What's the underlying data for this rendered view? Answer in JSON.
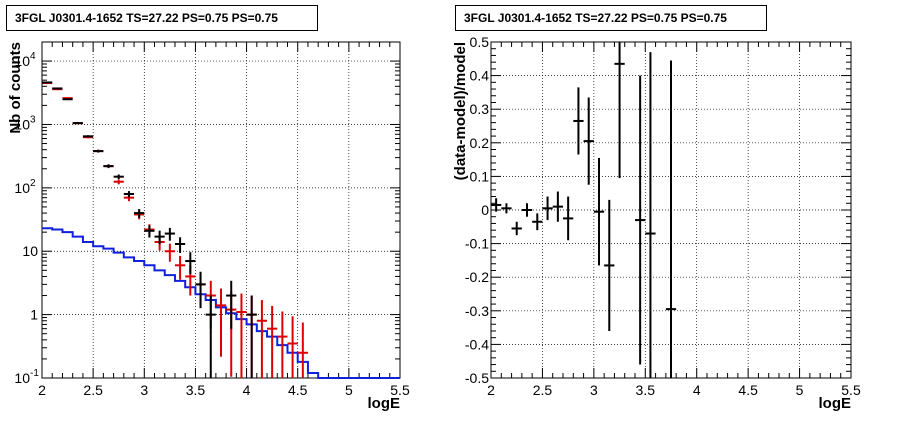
{
  "panels": {
    "left": {
      "title": "3FGL J0301.4-1652 TS=27.22 PS=0.75 PS=0.75"
    },
    "right": {
      "title": "3FGL J0301.4-1652 TS=27.22 PS=0.75 PS=0.75"
    }
  },
  "colors": {
    "data": "#000000",
    "model": "#dd0000",
    "background": "#1020dd",
    "grid": "#000000"
  },
  "chart_data": [
    {
      "type": "line",
      "xlabel": "logE",
      "ylabel": "Nb of counts",
      "xlim": [
        2,
        5.5
      ],
      "ylim": [
        0.1,
        20000
      ],
      "yscale": "log",
      "grid": true,
      "x_ticks": [
        "2",
        "2.5",
        "3",
        "3.5",
        "4",
        "4.5",
        "5",
        "5.5"
      ],
      "y_ticks": [
        {
          "v": 0.1,
          "label": "10",
          "exp": "-1"
        },
        {
          "v": 1,
          "label": "1",
          "exp": ""
        },
        {
          "v": 10,
          "label": "10",
          "exp": ""
        },
        {
          "v": 100,
          "label": "10",
          "exp": "2"
        },
        {
          "v": 1000,
          "label": "10",
          "exp": "3"
        },
        {
          "v": 10000,
          "label": "10",
          "exp": "4"
        }
      ],
      "series": [
        {
          "role": "data",
          "x": [
            2.05,
            2.15,
            2.25,
            2.35,
            2.45,
            2.55,
            2.65,
            2.75,
            2.85,
            2.95,
            3.05,
            3.15,
            3.25,
            3.35,
            3.45,
            3.55,
            3.65,
            3.75,
            3.85,
            3.95,
            4.05,
            4.15,
            4.25,
            4.35,
            4.45,
            4.55
          ],
          "y": [
            4600,
            3700,
            2500,
            1050,
            650,
            380,
            220,
            150,
            80,
            40,
            21,
            17,
            19,
            13,
            7,
            3,
            1,
            0,
            2,
            0,
            1,
            0,
            0,
            0,
            0,
            0
          ]
        },
        {
          "role": "model",
          "x": [
            2.05,
            2.15,
            2.25,
            2.35,
            2.45,
            2.55,
            2.65,
            2.75,
            2.85,
            2.95,
            3.05,
            3.15,
            3.25,
            3.35,
            3.45,
            3.55,
            3.65,
            3.75,
            3.85,
            3.95,
            4.05,
            4.15,
            4.25,
            4.35,
            4.45,
            4.55
          ],
          "y": [
            4500,
            3600,
            2600,
            1050,
            630,
            380,
            220,
            125,
            70,
            38,
            22,
            14,
            10,
            6,
            4,
            3,
            2,
            1.4,
            1.2,
            1.1,
            1,
            0.8,
            0.6,
            0.45,
            0.35,
            0.25
          ]
        },
        {
          "role": "background",
          "x": [
            2.05,
            2.15,
            2.25,
            2.35,
            2.45,
            2.55,
            2.65,
            2.75,
            2.85,
            2.95,
            3.05,
            3.15,
            3.25,
            3.35,
            3.45,
            3.55,
            3.65,
            3.75,
            3.85,
            3.95,
            4.05,
            4.15,
            4.25,
            4.35,
            4.45,
            4.55,
            4.65,
            4.75,
            4.85,
            4.95,
            5.05,
            5.15,
            5.25,
            5.35,
            5.45
          ],
          "y": [
            23,
            22,
            20,
            17,
            14,
            12,
            11,
            9.5,
            8,
            7,
            6,
            5,
            4.2,
            3.4,
            2.7,
            2.1,
            1.7,
            1.3,
            1.05,
            0.85,
            0.7,
            0.55,
            0.45,
            0.33,
            0.25,
            0.18,
            0.12,
            0.1,
            0.1,
            0.1,
            0.1,
            0.1,
            0.1,
            0.1,
            0.1
          ]
        }
      ]
    },
    {
      "type": "scatter",
      "xlabel": "logE",
      "ylabel": "(data-model)/model",
      "xlim": [
        2,
        5.5
      ],
      "ylim": [
        -0.5,
        0.5
      ],
      "grid": true,
      "x_ticks": [
        "2",
        "2.5",
        "3",
        "3.5",
        "4",
        "4.5",
        "5",
        "5.5"
      ],
      "y_ticks": [
        "-0.5",
        "-0.4",
        "-0.3",
        "-0.2",
        "-0.1",
        "0",
        "0.1",
        "0.2",
        "0.3",
        "0.4",
        "0.5"
      ],
      "series": [
        {
          "role": "residuals",
          "x": [
            2.05,
            2.15,
            2.25,
            2.35,
            2.45,
            2.55,
            2.65,
            2.75,
            2.85,
            2.95,
            3.05,
            3.15,
            3.25,
            3.45,
            3.55,
            3.75
          ],
          "y": [
            0.015,
            0.005,
            -0.055,
            0.0,
            -0.035,
            0.005,
            0.01,
            -0.025,
            0.265,
            0.205,
            -0.005,
            -0.165,
            0.435,
            -0.03,
            -0.07,
            -0.295
          ],
          "err": [
            0.02,
            0.015,
            0.02,
            0.02,
            0.025,
            0.035,
            0.045,
            0.065,
            0.1,
            0.13,
            0.16,
            0.195,
            0.34,
            0.43,
            0.54,
            0.74
          ]
        }
      ]
    }
  ]
}
